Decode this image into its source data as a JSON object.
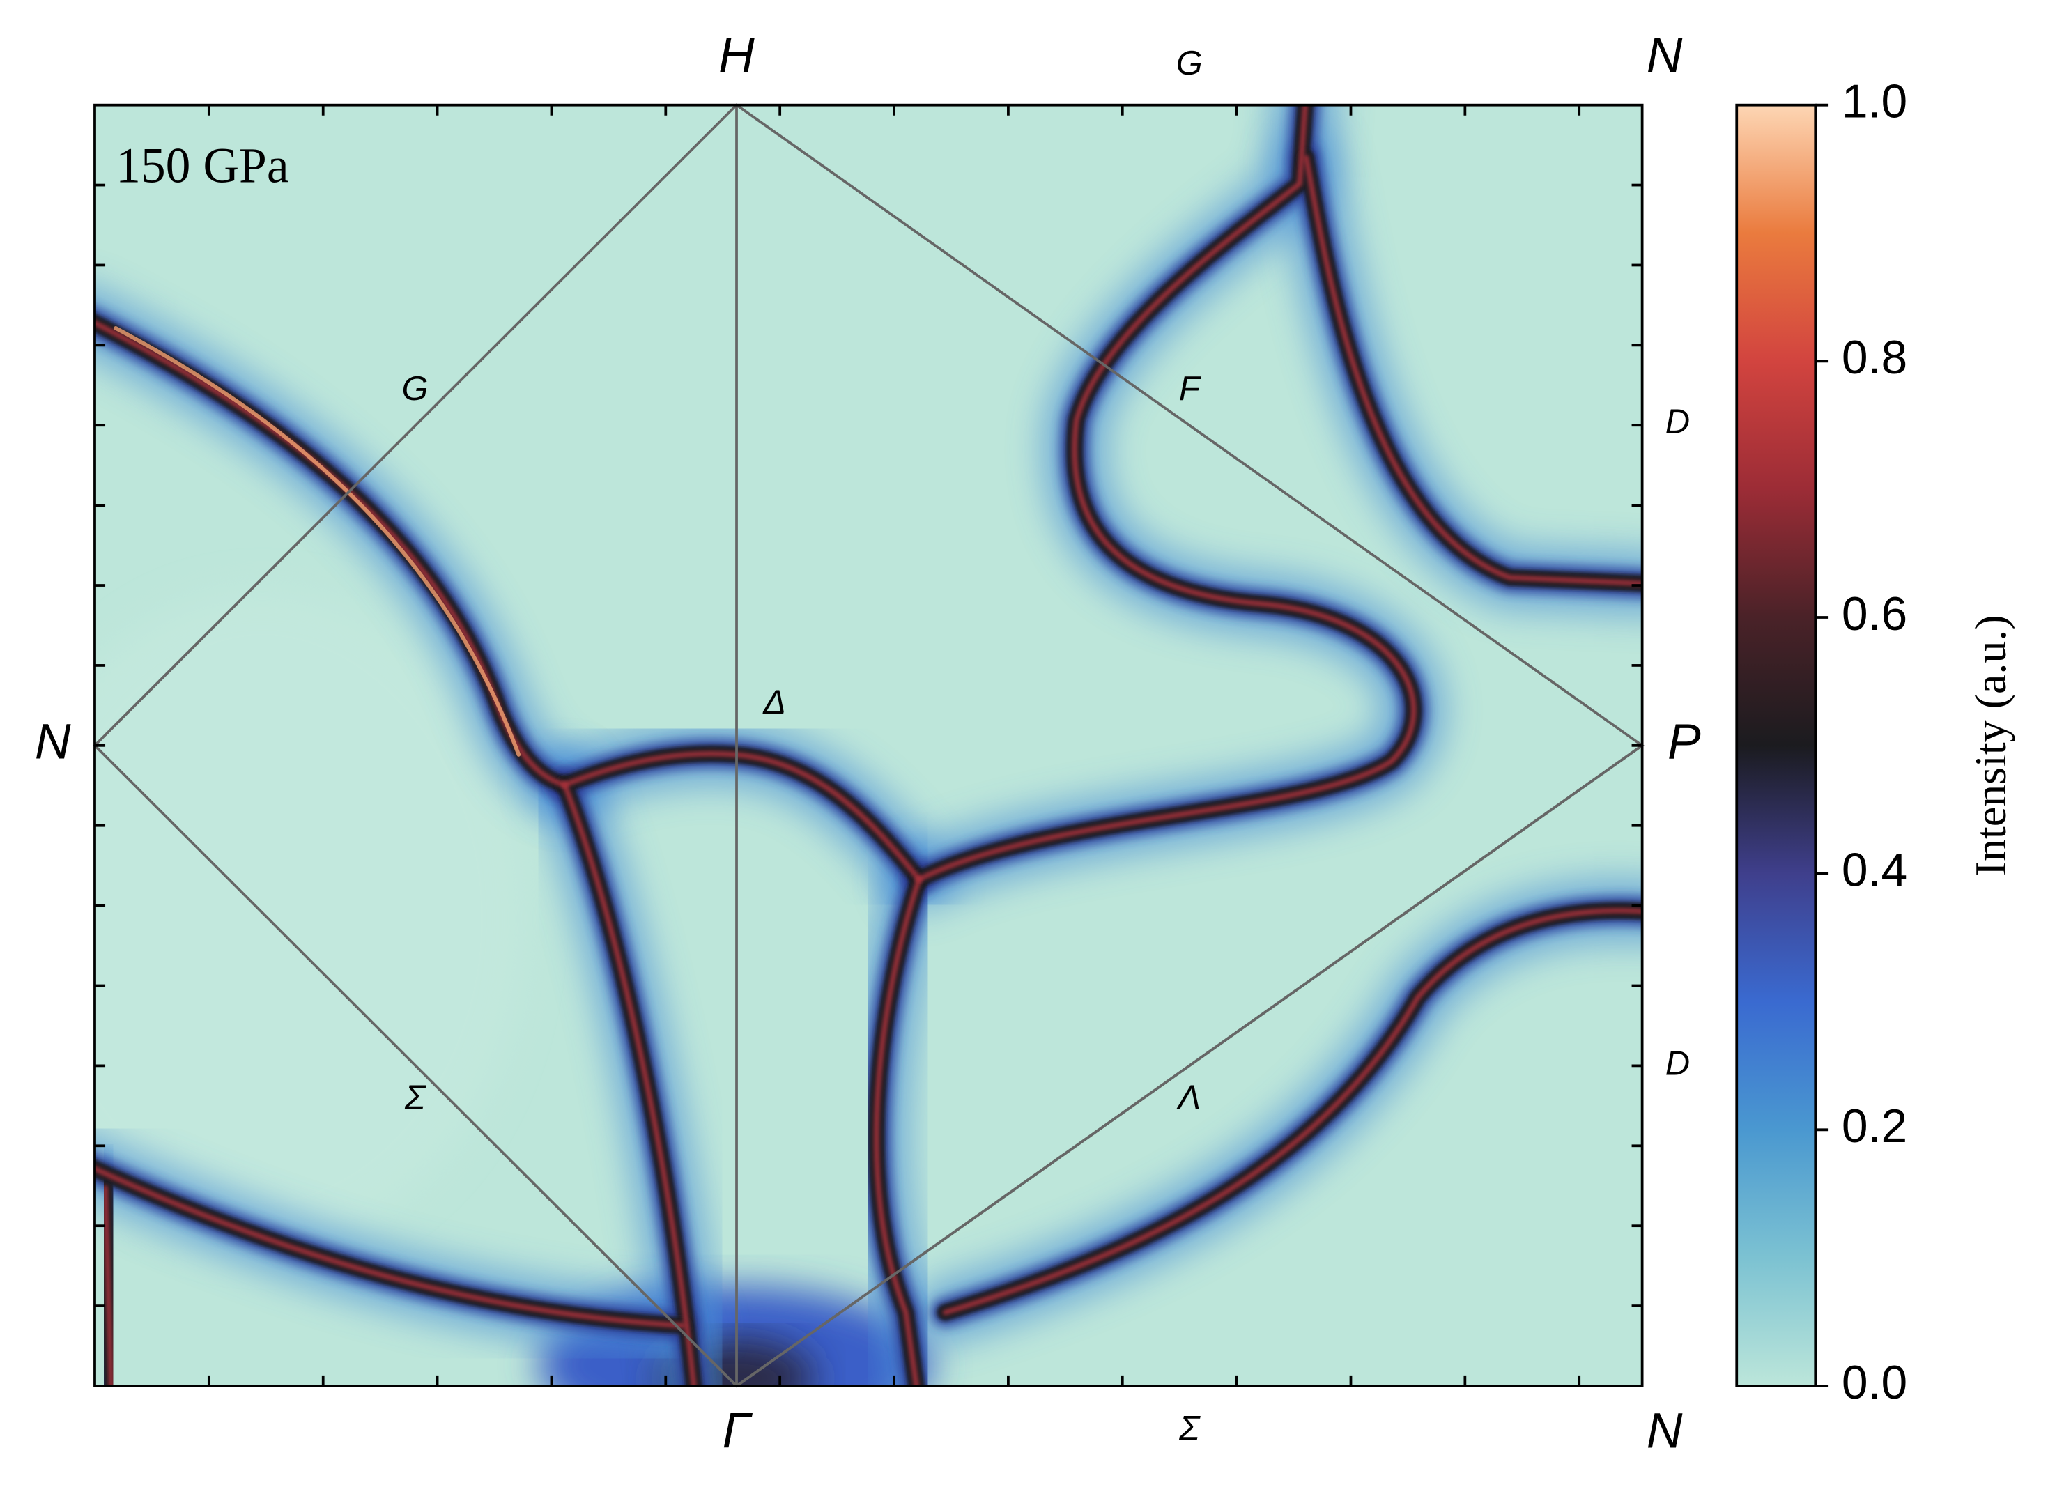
{
  "chart_data": {
    "type": "heatmap",
    "annotation": "150 GPa",
    "point_labels": [
      "H",
      "G",
      "N",
      "N",
      "P",
      "Γ",
      "Σ",
      "N",
      "G",
      "F",
      "Δ",
      "Σ",
      "Λ",
      "D",
      "D"
    ],
    "colorbar": {
      "label": "Intensity (a.u.)",
      "lim": [
        0,
        1
      ],
      "ticks": [
        {
          "value": 0,
          "label": "0.0"
        },
        0.2,
        0.4,
        0.6,
        0.8,
        {
          "value": 1,
          "label": "1.0"
        }
      ],
      "colors": [
        "#bce6da",
        "#7cc2d2",
        "#4a98d0",
        "#3a6ad0",
        "#3f3f8c",
        "#1b1b1f",
        "#4a2228",
        "#9c2c36",
        "#d2443f",
        "#ea7b3e",
        "#fdd6b4"
      ]
    }
  }
}
